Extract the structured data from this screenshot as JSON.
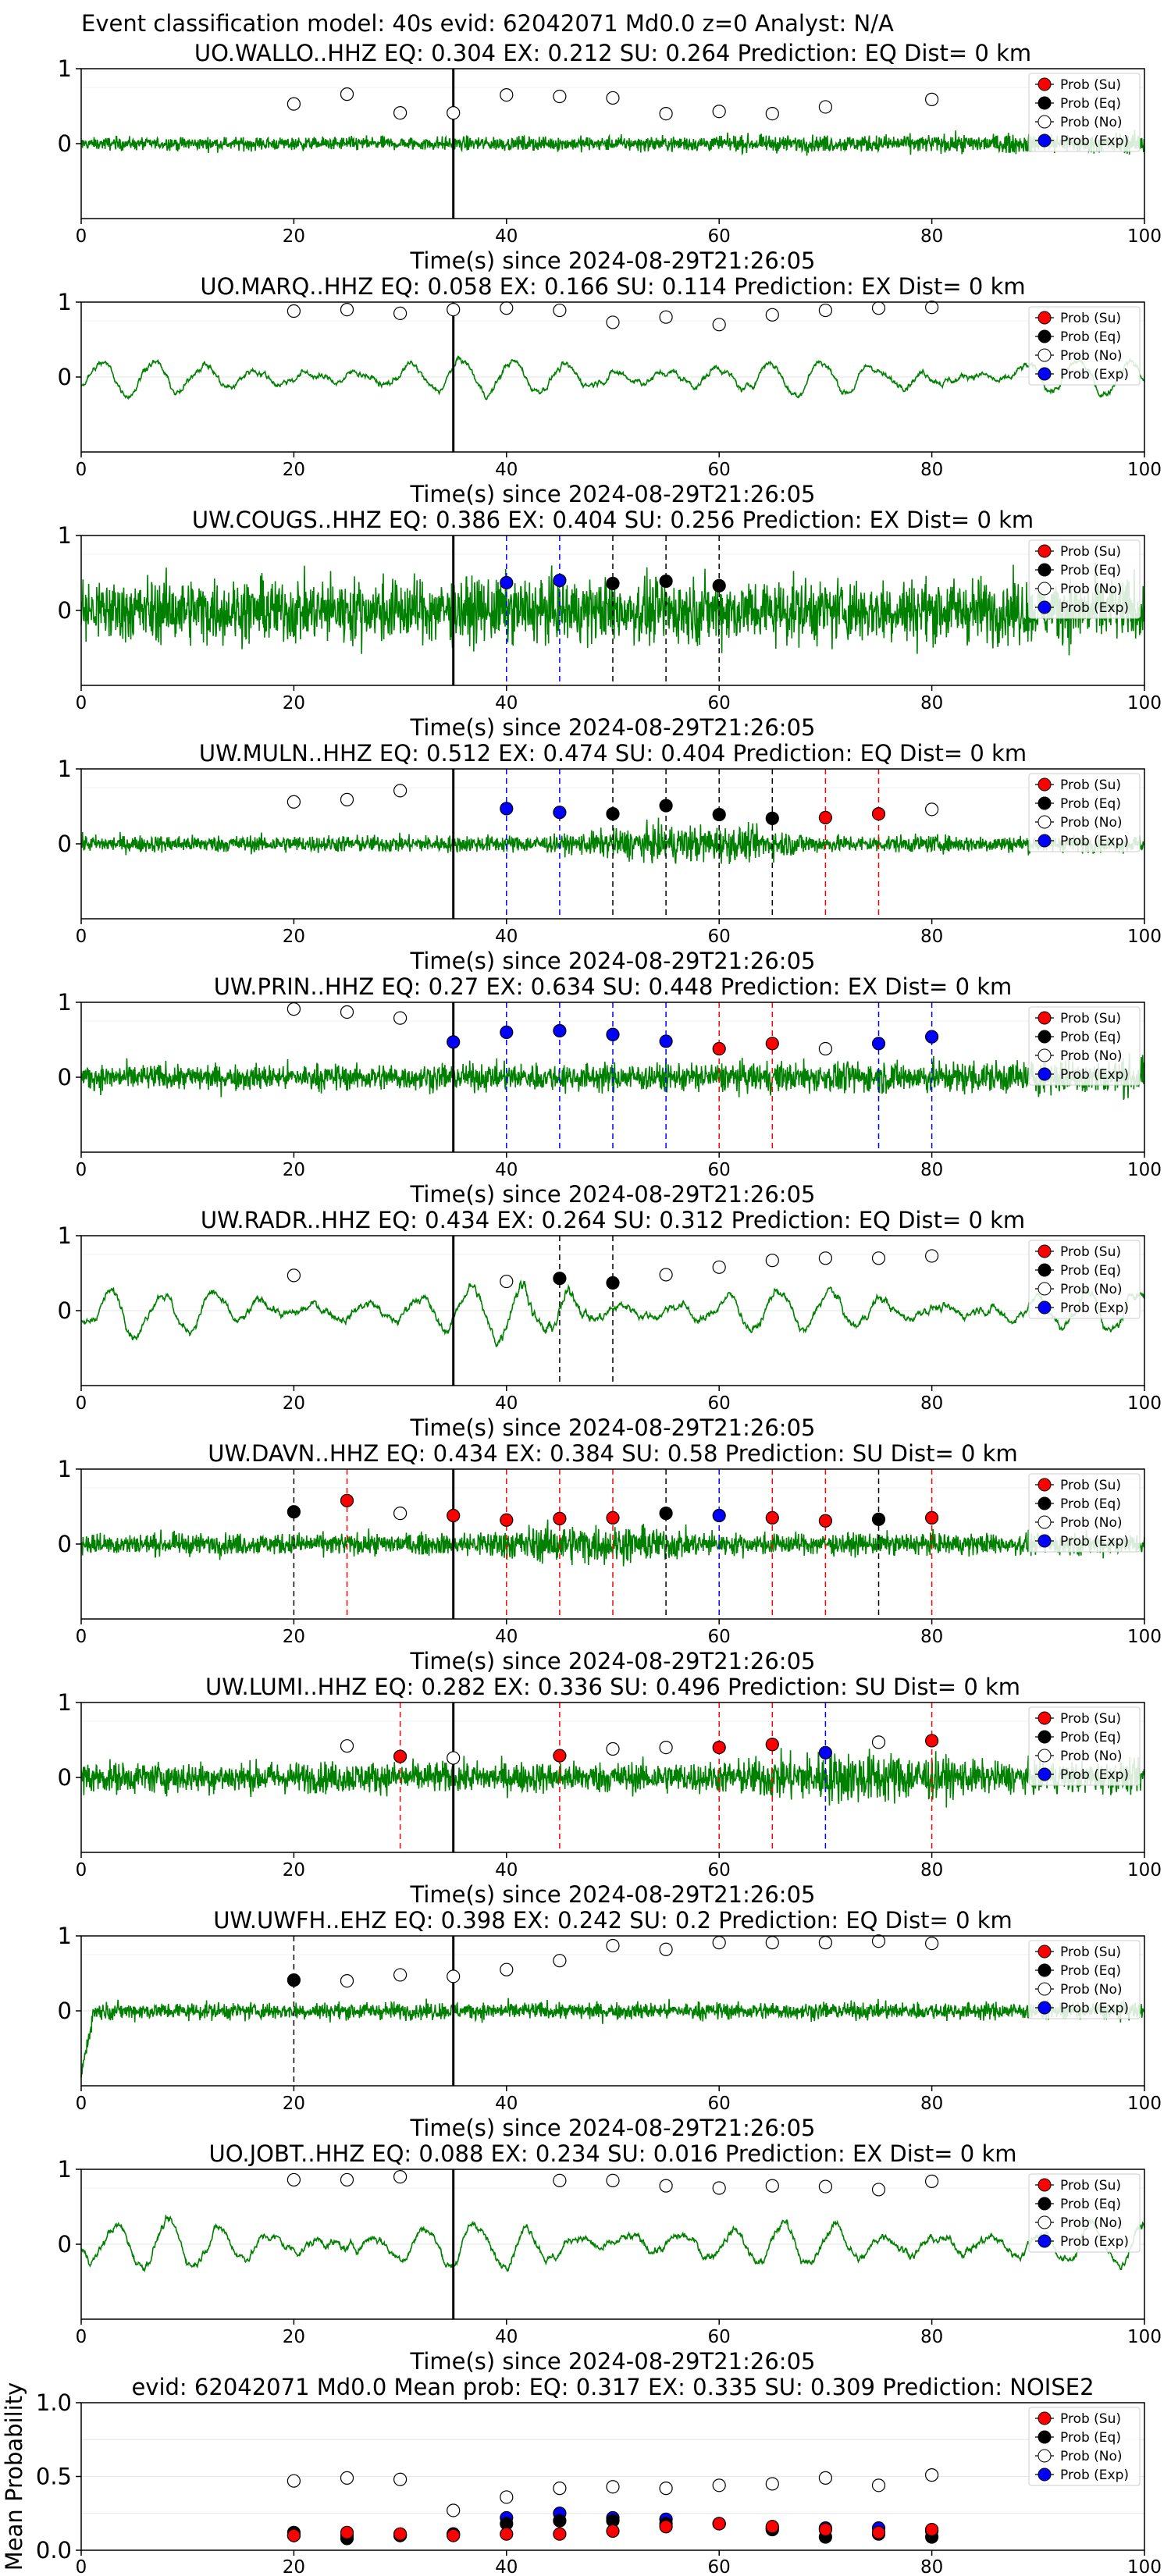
{
  "figure": {
    "suptitle": "Event classification model: 40s evid: 62042071 Md0.0 z=0 Analyst: N/A",
    "xlabel": "Time(s) since 2024-08-29T21:26:05",
    "legend": [
      "Prob (Su)",
      "Prob (Eq)",
      "Prob (No)",
      "Prob (Exp)"
    ],
    "colors": {
      "Su": "#ff0000",
      "Eq": "#000000",
      "No": "#ffffff",
      "Exp": "#0000ff",
      "trace": "#008000"
    }
  },
  "chart_data": [
    {
      "type": "line",
      "id": "p0",
      "title": "UO.WALLO..HHZ   EQ: 0.304  EX: 0.212  SU: 0.264   Prediction: EQ    Dist= 0 km",
      "xlim": [
        0,
        100
      ],
      "xticks": [
        0,
        20,
        40,
        60,
        80,
        100
      ],
      "yticks": [
        0,
        1
      ],
      "ylim": [
        -1,
        1
      ],
      "trace": {
        "amp": 0.09,
        "type": "noise",
        "grow": 1.6
      },
      "pick_time": 35,
      "points": [
        {
          "t": 20,
          "cls": "No",
          "p": 0.53
        },
        {
          "t": 25,
          "cls": "No",
          "p": 0.66
        },
        {
          "t": 30,
          "cls": "No",
          "p": 0.41
        },
        {
          "t": 35,
          "cls": "No",
          "p": 0.41
        },
        {
          "t": 40,
          "cls": "No",
          "p": 0.65
        },
        {
          "t": 45,
          "cls": "No",
          "p": 0.63
        },
        {
          "t": 50,
          "cls": "No",
          "p": 0.61
        },
        {
          "t": 55,
          "cls": "No",
          "p": 0.4
        },
        {
          "t": 60,
          "cls": "No",
          "p": 0.43
        },
        {
          "t": 65,
          "cls": "No",
          "p": 0.4
        },
        {
          "t": 70,
          "cls": "No",
          "p": 0.49
        },
        {
          "t": 80,
          "cls": "No",
          "p": 0.59
        }
      ]
    },
    {
      "type": "line",
      "id": "p1",
      "title": "UO.MARQ..HHZ   EQ: 0.058  EX: 0.166  SU: 0.114   Prediction: EX    Dist= 0 km",
      "xlim": [
        0,
        100
      ],
      "xticks": [
        0,
        20,
        40,
        60,
        80,
        100
      ],
      "yticks": [
        0,
        1
      ],
      "ylim": [
        -1,
        1
      ],
      "trace": {
        "amp": 0.28,
        "type": "wave",
        "grow": 1.0
      },
      "pick_time": 35,
      "points": [
        {
          "t": 20,
          "cls": "No",
          "p": 0.88
        },
        {
          "t": 25,
          "cls": "No",
          "p": 0.9
        },
        {
          "t": 30,
          "cls": "No",
          "p": 0.85
        },
        {
          "t": 35,
          "cls": "No",
          "p": 0.9
        },
        {
          "t": 40,
          "cls": "No",
          "p": 0.92
        },
        {
          "t": 45,
          "cls": "No",
          "p": 0.89
        },
        {
          "t": 50,
          "cls": "No",
          "p": 0.73
        },
        {
          "t": 55,
          "cls": "No",
          "p": 0.8
        },
        {
          "t": 60,
          "cls": "No",
          "p": 0.7
        },
        {
          "t": 65,
          "cls": "No",
          "p": 0.83
        },
        {
          "t": 70,
          "cls": "No",
          "p": 0.89
        },
        {
          "t": 75,
          "cls": "No",
          "p": 0.92
        },
        {
          "t": 80,
          "cls": "No",
          "p": 0.93
        }
      ]
    },
    {
      "type": "line",
      "id": "p2",
      "title": "UW.COUGS..HHZ   EQ: 0.386  EX: 0.404  SU: 0.256   Prediction: EX    Dist= 0 km",
      "xlim": [
        0,
        100
      ],
      "xticks": [
        0,
        20,
        40,
        60,
        80,
        100
      ],
      "yticks": [
        0,
        1
      ],
      "ylim": [
        -1,
        1
      ],
      "trace": {
        "amp": 0.45,
        "type": "noise",
        "grow": 1.0
      },
      "pick_time": 35,
      "points": [
        {
          "t": 40,
          "cls": "Exp",
          "p": 0.37
        },
        {
          "t": 45,
          "cls": "Exp",
          "p": 0.4
        },
        {
          "t": 50,
          "cls": "Eq",
          "p": 0.36
        },
        {
          "t": 55,
          "cls": "Eq",
          "p": 0.39
        },
        {
          "t": 60,
          "cls": "Eq",
          "p": 0.33
        }
      ]
    },
    {
      "type": "line",
      "id": "p3",
      "title": "UW.MULN..HHZ   EQ: 0.512  EX: 0.474  SU: 0.404   Prediction: EQ    Dist= 0 km",
      "xlim": [
        0,
        100
      ],
      "xticks": [
        0,
        20,
        40,
        60,
        80,
        100
      ],
      "yticks": [
        0,
        1
      ],
      "ylim": [
        -1,
        1
      ],
      "trace": {
        "amp": 0.12,
        "type": "noise",
        "grow": 1.0,
        "bump": [
          45,
          70,
          2.2
        ]
      },
      "pick_time": 35,
      "points": [
        {
          "t": 20,
          "cls": "No",
          "p": 0.56
        },
        {
          "t": 25,
          "cls": "No",
          "p": 0.59
        },
        {
          "t": 30,
          "cls": "No",
          "p": 0.71
        },
        {
          "t": 40,
          "cls": "Exp",
          "p": 0.47
        },
        {
          "t": 45,
          "cls": "Exp",
          "p": 0.42
        },
        {
          "t": 50,
          "cls": "Eq",
          "p": 0.4
        },
        {
          "t": 55,
          "cls": "Eq",
          "p": 0.51
        },
        {
          "t": 60,
          "cls": "Eq",
          "p": 0.39
        },
        {
          "t": 65,
          "cls": "Eq",
          "p": 0.34
        },
        {
          "t": 70,
          "cls": "Su",
          "p": 0.35
        },
        {
          "t": 75,
          "cls": "Su",
          "p": 0.4
        },
        {
          "t": 80,
          "cls": "No",
          "p": 0.46
        }
      ]
    },
    {
      "type": "line",
      "id": "p4",
      "title": "UW.PRIN..HHZ   EQ: 0.27  EX: 0.634  SU: 0.448   Prediction: EX    Dist= 0 km",
      "xlim": [
        0,
        100
      ],
      "xticks": [
        0,
        20,
        40,
        60,
        80,
        100
      ],
      "yticks": [
        0,
        1
      ],
      "ylim": [
        -1,
        1
      ],
      "trace": {
        "amp": 0.18,
        "type": "noise",
        "grow": 1.4
      },
      "pick_time": 35,
      "points": [
        {
          "t": 20,
          "cls": "No",
          "p": 0.91
        },
        {
          "t": 25,
          "cls": "No",
          "p": 0.87
        },
        {
          "t": 30,
          "cls": "No",
          "p": 0.79
        },
        {
          "t": 35,
          "cls": "Exp",
          "p": 0.47
        },
        {
          "t": 40,
          "cls": "Exp",
          "p": 0.6
        },
        {
          "t": 45,
          "cls": "Exp",
          "p": 0.62
        },
        {
          "t": 50,
          "cls": "Exp",
          "p": 0.57
        },
        {
          "t": 55,
          "cls": "Exp",
          "p": 0.48
        },
        {
          "t": 60,
          "cls": "Su",
          "p": 0.38
        },
        {
          "t": 65,
          "cls": "Su",
          "p": 0.45
        },
        {
          "t": 70,
          "cls": "No",
          "p": 0.38
        },
        {
          "t": 75,
          "cls": "Exp",
          "p": 0.45
        },
        {
          "t": 80,
          "cls": "Exp",
          "p": 0.54
        }
      ]
    },
    {
      "type": "line",
      "id": "p5",
      "title": "UW.RADR..HHZ   EQ: 0.434  EX: 0.264  SU: 0.312   Prediction: EQ    Dist= 0 km",
      "xlim": [
        0,
        100
      ],
      "xticks": [
        0,
        20,
        40,
        60,
        80,
        100
      ],
      "yticks": [
        0,
        1
      ],
      "ylim": [
        -1,
        1
      ],
      "trace": {
        "amp": 0.35,
        "type": "wave",
        "grow": 1.0,
        "bump": [
          35,
          50,
          1.6
        ]
      },
      "pick_time": 35,
      "points": [
        {
          "t": 20,
          "cls": "No",
          "p": 0.47
        },
        {
          "t": 40,
          "cls": "No",
          "p": 0.39
        },
        {
          "t": 45,
          "cls": "Eq",
          "p": 0.43
        },
        {
          "t": 50,
          "cls": "Eq",
          "p": 0.37
        },
        {
          "t": 55,
          "cls": "No",
          "p": 0.48
        },
        {
          "t": 60,
          "cls": "No",
          "p": 0.58
        },
        {
          "t": 65,
          "cls": "No",
          "p": 0.67
        },
        {
          "t": 70,
          "cls": "No",
          "p": 0.7
        },
        {
          "t": 75,
          "cls": "No",
          "p": 0.7
        },
        {
          "t": 80,
          "cls": "No",
          "p": 0.73
        }
      ]
    },
    {
      "type": "line",
      "id": "p6",
      "title": "UW.DAVN..HHZ   EQ: 0.434  EX: 0.384  SU: 0.58   Prediction: SU    Dist= 0 km",
      "xlim": [
        0,
        100
      ],
      "xticks": [
        0,
        20,
        40,
        60,
        80,
        100
      ],
      "yticks": [
        0,
        1
      ],
      "ylim": [
        -1,
        1
      ],
      "trace": {
        "amp": 0.15,
        "type": "noise",
        "grow": 1.0,
        "bump": [
          35,
          60,
          1.8
        ]
      },
      "pick_time": 35,
      "points": [
        {
          "t": 20,
          "cls": "Eq",
          "p": 0.43
        },
        {
          "t": 25,
          "cls": "Su",
          "p": 0.58
        },
        {
          "t": 30,
          "cls": "No",
          "p": 0.41
        },
        {
          "t": 35,
          "cls": "Su",
          "p": 0.38
        },
        {
          "t": 40,
          "cls": "Su",
          "p": 0.32
        },
        {
          "t": 45,
          "cls": "Su",
          "p": 0.34
        },
        {
          "t": 50,
          "cls": "Su",
          "p": 0.35
        },
        {
          "t": 55,
          "cls": "Eq",
          "p": 0.41
        },
        {
          "t": 60,
          "cls": "Exp",
          "p": 0.38
        },
        {
          "t": 65,
          "cls": "Su",
          "p": 0.35
        },
        {
          "t": 70,
          "cls": "Su",
          "p": 0.31
        },
        {
          "t": 75,
          "cls": "Eq",
          "p": 0.33
        },
        {
          "t": 80,
          "cls": "Su",
          "p": 0.35
        }
      ]
    },
    {
      "type": "line",
      "id": "p7",
      "title": "UW.LUMI..HHZ   EQ: 0.282  EX: 0.336  SU: 0.496   Prediction: SU    Dist= 0 km",
      "xlim": [
        0,
        100
      ],
      "xticks": [
        0,
        20,
        40,
        60,
        80,
        100
      ],
      "yticks": [
        0,
        1
      ],
      "ylim": [
        -1,
        1
      ],
      "trace": {
        "amp": 0.22,
        "type": "noise",
        "grow": 1.0,
        "bump": [
          60,
          85,
          1.7
        ]
      },
      "pick_time": 35,
      "points": [
        {
          "t": 25,
          "cls": "No",
          "p": 0.42
        },
        {
          "t": 30,
          "cls": "Su",
          "p": 0.28
        },
        {
          "t": 35,
          "cls": "No",
          "p": 0.26
        },
        {
          "t": 45,
          "cls": "Su",
          "p": 0.29
        },
        {
          "t": 50,
          "cls": "No",
          "p": 0.38
        },
        {
          "t": 55,
          "cls": "No",
          "p": 0.4
        },
        {
          "t": 60,
          "cls": "Su",
          "p": 0.4
        },
        {
          "t": 65,
          "cls": "Su",
          "p": 0.44
        },
        {
          "t": 70,
          "cls": "Exp",
          "p": 0.33
        },
        {
          "t": 75,
          "cls": "No",
          "p": 0.47
        },
        {
          "t": 80,
          "cls": "Su",
          "p": 0.49
        }
      ]
    },
    {
      "type": "line",
      "id": "p8",
      "title": "UW.UWFH..EHZ   EQ: 0.398  EX: 0.242  SU: 0.2   Prediction: EQ    Dist= 0 km",
      "xlim": [
        0,
        100
      ],
      "xticks": [
        0,
        20,
        40,
        60,
        80,
        100
      ],
      "yticks": [
        0,
        1
      ],
      "ylim": [
        -1,
        1
      ],
      "trace": {
        "amp": 0.12,
        "type": "noise",
        "grow": 1.0,
        "startdip": true
      },
      "pick_time": 35,
      "points": [
        {
          "t": 20,
          "cls": "Eq",
          "p": 0.41
        },
        {
          "t": 25,
          "cls": "No",
          "p": 0.4
        },
        {
          "t": 30,
          "cls": "No",
          "p": 0.48
        },
        {
          "t": 35,
          "cls": "No",
          "p": 0.46
        },
        {
          "t": 40,
          "cls": "No",
          "p": 0.55
        },
        {
          "t": 45,
          "cls": "No",
          "p": 0.67
        },
        {
          "t": 50,
          "cls": "No",
          "p": 0.87
        },
        {
          "t": 55,
          "cls": "No",
          "p": 0.82
        },
        {
          "t": 60,
          "cls": "No",
          "p": 0.91
        },
        {
          "t": 65,
          "cls": "No",
          "p": 0.91
        },
        {
          "t": 70,
          "cls": "No",
          "p": 0.91
        },
        {
          "t": 75,
          "cls": "No",
          "p": 0.93
        },
        {
          "t": 80,
          "cls": "No",
          "p": 0.9
        }
      ]
    },
    {
      "type": "line",
      "id": "p9",
      "title": "UO.JOBT..HHZ   EQ: 0.088  EX: 0.234  SU: 0.016   Prediction: EX    Dist= 0 km",
      "xlim": [
        0,
        100
      ],
      "xticks": [
        0,
        20,
        40,
        60,
        80,
        100
      ],
      "yticks": [
        0,
        1
      ],
      "ylim": [
        -1,
        1
      ],
      "trace": {
        "amp": 0.35,
        "type": "wave",
        "grow": 1.0
      },
      "pick_time": 35,
      "points": [
        {
          "t": 20,
          "cls": "No",
          "p": 0.86
        },
        {
          "t": 25,
          "cls": "No",
          "p": 0.86
        },
        {
          "t": 30,
          "cls": "No",
          "p": 0.9
        },
        {
          "t": 45,
          "cls": "No",
          "p": 0.85
        },
        {
          "t": 50,
          "cls": "No",
          "p": 0.85
        },
        {
          "t": 55,
          "cls": "No",
          "p": 0.78
        },
        {
          "t": 60,
          "cls": "No",
          "p": 0.75
        },
        {
          "t": 65,
          "cls": "No",
          "p": 0.78
        },
        {
          "t": 70,
          "cls": "No",
          "p": 0.77
        },
        {
          "t": 75,
          "cls": "No",
          "p": 0.73
        },
        {
          "t": 80,
          "cls": "No",
          "p": 0.84
        }
      ]
    },
    {
      "type": "scatter",
      "id": "mean",
      "title": "evid: 62042071  Md0.0   Mean prob:   EQ: 0.317  EX: 0.335  SU: 0.309   Prediction: NOISE2",
      "ylabel": "Mean Probability",
      "xlim": [
        0,
        100
      ],
      "ylim": [
        0,
        1
      ],
      "xticks": [
        0,
        20,
        40,
        60,
        80,
        100
      ],
      "yticks": [
        0.0,
        0.5,
        1.0
      ],
      "ytick_labels": [
        "0.0",
        "0.5",
        "1.0"
      ],
      "x": [
        20,
        25,
        30,
        35,
        40,
        45,
        50,
        55,
        60,
        65,
        70,
        75,
        80
      ],
      "series": [
        {
          "cls": "No",
          "name": "Prob (No)",
          "values": [
            0.47,
            0.49,
            0.48,
            0.27,
            0.36,
            0.42,
            0.43,
            0.42,
            0.44,
            0.45,
            0.49,
            0.44,
            0.51
          ]
        },
        {
          "cls": "Exp",
          "name": "Prob (Exp)",
          "values": [
            0.1,
            0.1,
            0.1,
            0.11,
            0.22,
            0.25,
            0.22,
            0.21,
            0.18,
            0.15,
            0.15,
            0.15,
            0.13
          ]
        },
        {
          "cls": "Eq",
          "name": "Prob (Eq)",
          "values": [
            0.12,
            0.08,
            0.1,
            0.11,
            0.18,
            0.2,
            0.2,
            0.18,
            0.18,
            0.14,
            0.09,
            0.11,
            0.09
          ]
        },
        {
          "cls": "Su",
          "name": "Prob (Su)",
          "values": [
            0.1,
            0.12,
            0.11,
            0.1,
            0.11,
            0.11,
            0.13,
            0.16,
            0.18,
            0.16,
            0.14,
            0.12,
            0.14
          ]
        }
      ]
    }
  ]
}
